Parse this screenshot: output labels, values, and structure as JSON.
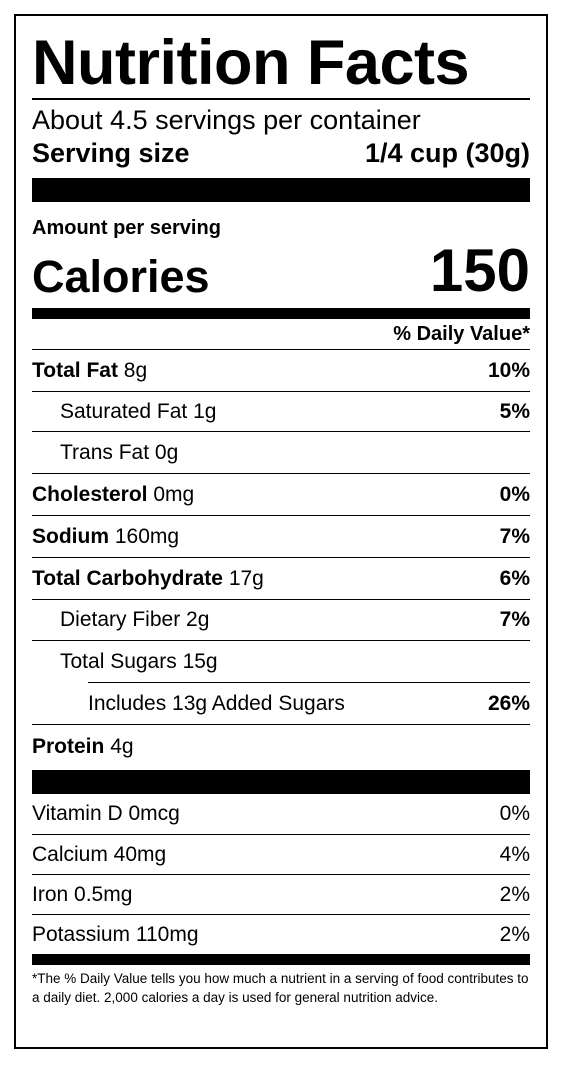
{
  "title": "Nutrition Facts",
  "servings_per_container": "About 4.5 servings per container",
  "serving_size": {
    "label": "Serving size",
    "value": "1/4 cup (30g)"
  },
  "amount_per_serving": "Amount per serving",
  "calories": {
    "label": "Calories",
    "value": "150"
  },
  "daily_value_header": "% Daily Value*",
  "nutrients": [
    {
      "name": "Total Fat",
      "amount": "8g",
      "dv": "10%"
    },
    {
      "name": "Saturated Fat",
      "amount": "1g",
      "dv": "5%"
    },
    {
      "name": "Trans Fat",
      "amount": "0g",
      "dv": ""
    },
    {
      "name": "Cholesterol",
      "amount": "0mg",
      "dv": "0%"
    },
    {
      "name": "Sodium",
      "amount": "160mg",
      "dv": "7%"
    },
    {
      "name": "Total Carbohydrate",
      "amount": "17g",
      "dv": "6%"
    },
    {
      "name": "Dietary Fiber",
      "amount": "2g",
      "dv": "7%"
    },
    {
      "name": "Total Sugars",
      "amount": "15g",
      "dv": ""
    },
    {
      "name": "Includes 13g Added Sugars",
      "amount": "",
      "dv": "26%"
    },
    {
      "name": "Protein",
      "amount": "4g",
      "dv": ""
    }
  ],
  "minerals": [
    {
      "label": "Vitamin D 0mcg",
      "dv": "0%"
    },
    {
      "label": "Calcium 40mg",
      "dv": "4%"
    },
    {
      "label": "Iron 0.5mg",
      "dv": "2%"
    },
    {
      "label": "Potassium 110mg",
      "dv": "2%"
    }
  ],
  "footnote": "*The % Daily Value tells you how much a nutrient in a serving of food contributes to a daily diet. 2,000 calories a day is used for general nutrition advice."
}
